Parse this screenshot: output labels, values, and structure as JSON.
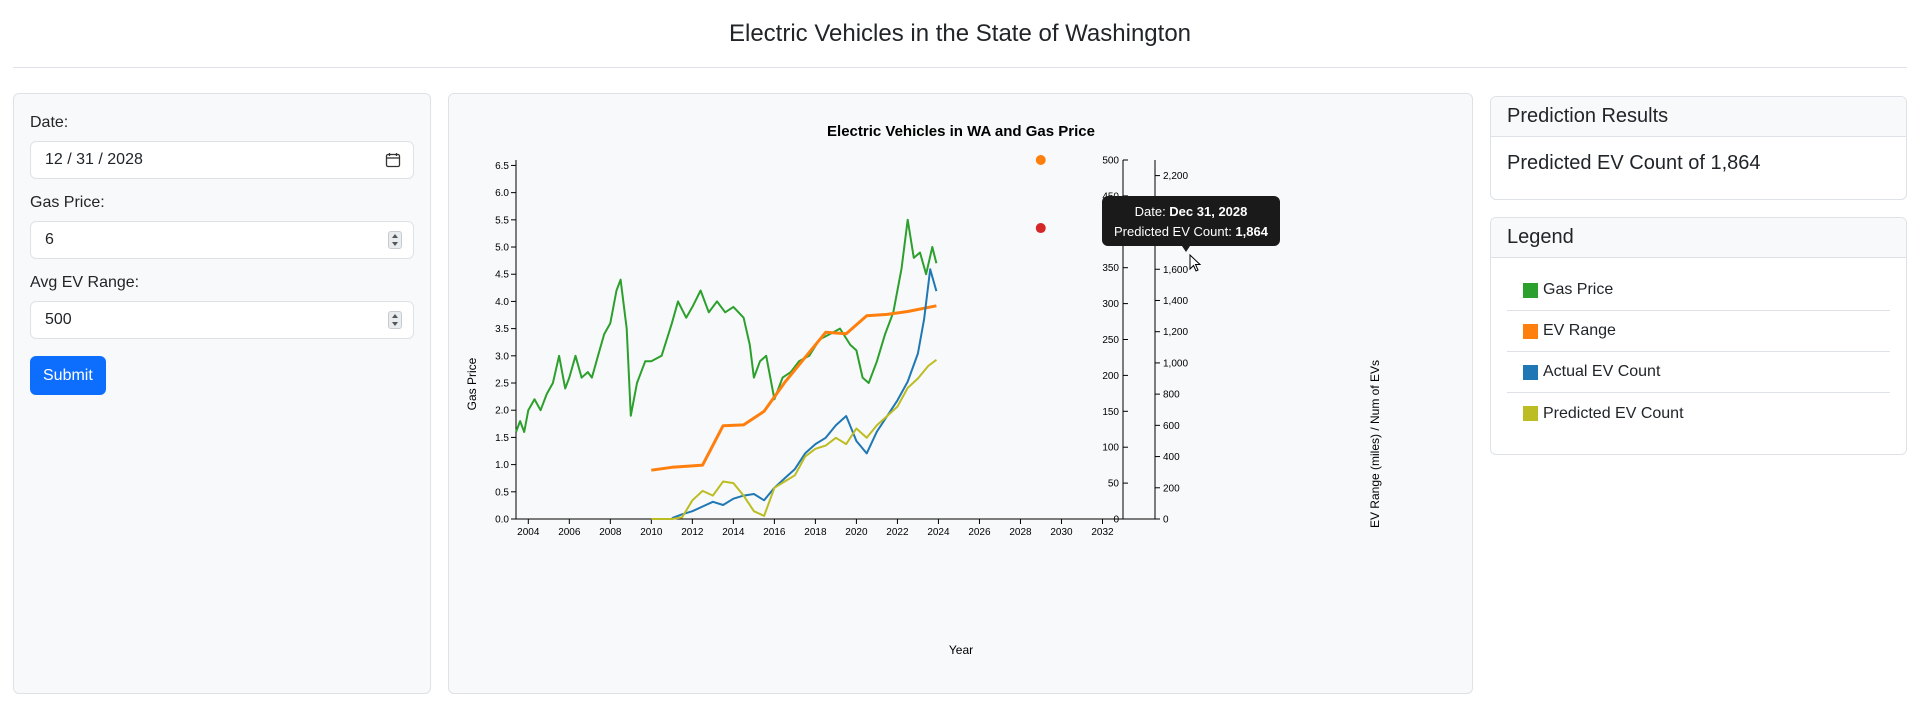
{
  "page": {
    "title": "Electric Vehicles in the State of Washington"
  },
  "form": {
    "date_label": "Date:",
    "date_value": "12 / 31 / 2028",
    "gas_label": "Gas Price:",
    "gas_value": "6",
    "range_label": "Avg EV Range:",
    "range_value": "500",
    "submit_label": "Submit"
  },
  "results": {
    "header": "Prediction Results",
    "text": "Predicted EV Count of 1,864"
  },
  "legend": {
    "header": "Legend",
    "items": [
      {
        "label": "Gas Price",
        "color": "#2ca02c"
      },
      {
        "label": "EV Range",
        "color": "#ff7f0e"
      },
      {
        "label": "Actual EV Count",
        "color": "#1f77b4"
      },
      {
        "label": "Predicted EV Count",
        "color": "#bcbd22"
      }
    ]
  },
  "tooltip": {
    "date_label": "Date: ",
    "date_value": "Dec 31, 2028",
    "count_label": "Predicted EV Count: ",
    "count_value": "1,864"
  },
  "chart_data": {
    "type": "line",
    "title": "Electric Vehicles in WA and Gas Price",
    "xlabel": "Year",
    "ylabel_left": "Gas Price",
    "ylabel_right": "EV Range (miles) / Num of EVs",
    "xlim": [
      2003.4,
      2033.0
    ],
    "ylim_left": [
      0,
      6.6
    ],
    "ylim_range": [
      0,
      500
    ],
    "ylim_count": [
      0,
      2300
    ],
    "x_ticks": [
      2004,
      2006,
      2008,
      2010,
      2012,
      2014,
      2016,
      2018,
      2020,
      2022,
      2024,
      2026,
      2028,
      2030,
      2032
    ],
    "y_ticks_left": [
      0.0,
      0.5,
      1.0,
      1.5,
      2.0,
      2.5,
      3.0,
      3.5,
      4.0,
      4.5,
      5.0,
      5.5,
      6.0,
      6.5
    ],
    "y_ticks_range": [
      0,
      50,
      100,
      150,
      200,
      250,
      300,
      350,
      400,
      450,
      500
    ],
    "y_ticks_count": [
      0,
      200,
      400,
      600,
      800,
      1000,
      1200,
      1400,
      1600,
      1800,
      2000,
      2200
    ],
    "series": [
      {
        "name": "Gas Price",
        "color": "#2ca02c",
        "axis": "left",
        "x": [
          2003.4,
          2003.6,
          2003.8,
          2004.0,
          2004.3,
          2004.6,
          2004.9,
          2005.2,
          2005.5,
          2005.8,
          2006.0,
          2006.3,
          2006.6,
          2006.9,
          2007.1,
          2007.4,
          2007.7,
          2008.0,
          2008.3,
          2008.5,
          2008.8,
          2009.0,
          2009.3,
          2009.7,
          2010.0,
          2010.5,
          2011.0,
          2011.3,
          2011.7,
          2012.0,
          2012.4,
          2012.8,
          2013.2,
          2013.6,
          2014.0,
          2014.5,
          2014.8,
          2015.0,
          2015.3,
          2015.6,
          2016.0,
          2016.4,
          2016.8,
          2017.2,
          2017.7,
          2018.2,
          2018.7,
          2019.2,
          2019.7,
          2020.0,
          2020.3,
          2020.6,
          2021.0,
          2021.4,
          2021.8,
          2022.2,
          2022.5,
          2022.8,
          2023.1,
          2023.4,
          2023.7,
          2023.9
        ],
        "y": [
          1.6,
          1.8,
          1.6,
          2.0,
          2.2,
          2.0,
          2.3,
          2.5,
          3.0,
          2.4,
          2.6,
          3.0,
          2.6,
          2.7,
          2.6,
          3.0,
          3.4,
          3.6,
          4.2,
          4.4,
          3.5,
          1.9,
          2.5,
          2.9,
          2.9,
          3.0,
          3.6,
          4.0,
          3.7,
          3.9,
          4.2,
          3.8,
          4.0,
          3.8,
          3.9,
          3.7,
          3.2,
          2.6,
          2.9,
          3.0,
          2.2,
          2.6,
          2.7,
          2.9,
          3.0,
          3.3,
          3.4,
          3.5,
          3.2,
          3.1,
          2.6,
          2.5,
          2.9,
          3.4,
          3.8,
          4.6,
          5.5,
          4.8,
          4.9,
          4.5,
          5.0,
          4.7
        ]
      },
      {
        "name": "EV Range",
        "color": "#ff7f0e",
        "axis": "range",
        "x": [
          2010.0,
          2011.0,
          2012.0,
          2012.5,
          2013.5,
          2014.5,
          2015.5,
          2016.5,
          2017.5,
          2018.5,
          2019.5,
          2020.5,
          2021.5,
          2022.5,
          2023.9
        ],
        "y": [
          68,
          72,
          74,
          75,
          130,
          131,
          150,
          190,
          225,
          260,
          258,
          283,
          285,
          289,
          297
        ]
      },
      {
        "name": "Actual EV Count",
        "color": "#1f77b4",
        "axis": "count",
        "x": [
          2011.0,
          2011.5,
          2012.0,
          2012.5,
          2013.0,
          2013.5,
          2014.0,
          2014.5,
          2015.0,
          2015.5,
          2016.0,
          2016.5,
          2017.0,
          2017.5,
          2018.0,
          2018.5,
          2019.0,
          2019.5,
          2020.0,
          2020.5,
          2021.0,
          2021.5,
          2022.0,
          2022.5,
          2023.0,
          2023.3,
          2023.6,
          2023.9
        ],
        "y": [
          5,
          30,
          50,
          80,
          110,
          90,
          130,
          150,
          160,
          120,
          200,
          260,
          320,
          420,
          480,
          520,
          600,
          660,
          500,
          420,
          560,
          660,
          760,
          880,
          1060,
          1280,
          1600,
          1460
        ]
      },
      {
        "name": "Predicted EV Count",
        "color": "#bcbd22",
        "axis": "count",
        "x": [
          2010.0,
          2011.0,
          2011.5,
          2012.0,
          2012.5,
          2013.0,
          2013.5,
          2014.0,
          2014.5,
          2015.0,
          2015.5,
          2016.0,
          2016.5,
          2017.0,
          2017.5,
          2018.0,
          2018.5,
          2019.0,
          2019.5,
          2020.0,
          2020.5,
          2021.0,
          2021.5,
          2022.0,
          2022.5,
          2023.0,
          2023.5,
          2023.9
        ],
        "y": [
          0,
          0,
          10,
          120,
          180,
          150,
          240,
          230,
          150,
          50,
          20,
          200,
          240,
          280,
          400,
          450,
          470,
          520,
          480,
          580,
          520,
          600,
          660,
          720,
          840,
          900,
          980,
          1020
        ]
      }
    ],
    "prediction_points": [
      {
        "name": "Predicted EV Range",
        "x": 2028.99,
        "y": 500,
        "axis": "range",
        "color": "#ff7f0e"
      },
      {
        "name": "Predicted EV Count",
        "x": 2028.99,
        "y": 1864,
        "axis": "count",
        "color": "#d62728"
      }
    ]
  }
}
